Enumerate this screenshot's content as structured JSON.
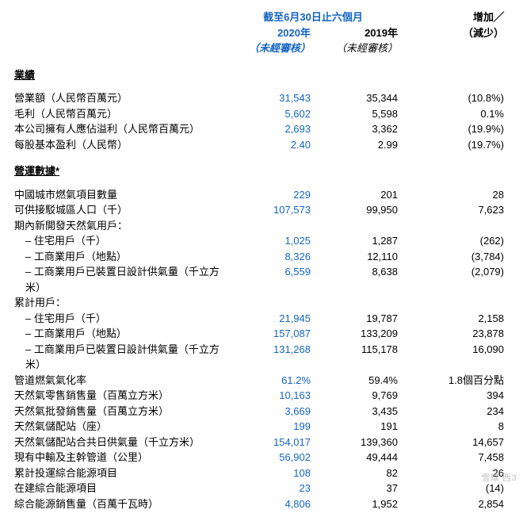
{
  "colors": {
    "blue": "#1565c0",
    "text": "#000000",
    "watermark": "#bfbfbf",
    "background": "#ffffff"
  },
  "header": {
    "period_span_line": "截至6月30日止六個月",
    "col_2020": "2020年",
    "col_2019": "2019年",
    "col_change_line1": "增加╱",
    "col_change_line2": "（減少）",
    "unaudited_2020": "（未經審核）",
    "unaudited_2019": "（未經審核）"
  },
  "sections": {
    "results": "業績",
    "operating": "營運數據*"
  },
  "results_rows": [
    {
      "label": "營業額（人民幣百萬元）",
      "y2020": "31,543",
      "y2019": "35,344",
      "chg": "(10.8%)"
    },
    {
      "label": "毛利（人民幣百萬元）",
      "y2020": "5,602",
      "y2019": "5,598",
      "chg": "0.1%"
    },
    {
      "label": "本公司擁有人應佔溢利（人民幣百萬元）",
      "y2020": "2,693",
      "y2019": "3,362",
      "chg": "(19.9%)"
    },
    {
      "label": "每股基本盈利（人民幣）",
      "y2020": "2.40",
      "y2019": "2.99",
      "chg": "(19.7%)"
    }
  ],
  "op_rows": [
    {
      "label": "中國城市燃氣項目數量",
      "y2020": "229",
      "y2019": "201",
      "chg": "28"
    },
    {
      "label": "可供接駁城區人口（千）",
      "y2020": "107,573",
      "y2019": "99,950",
      "chg": "7,623"
    },
    {
      "label": "期內新開發天然氣用戶：",
      "header": true
    },
    {
      "label": "– 住宅用戶（千）",
      "indent": true,
      "y2020": "1,025",
      "y2019": "1,287",
      "chg": "(262)"
    },
    {
      "label": "– 工商業用戶（地點）",
      "indent": true,
      "y2020": "8,326",
      "y2019": "12,110",
      "chg": "(3,784)"
    },
    {
      "label": "– 工商業用戶已裝置日設計供氣量（千立方米）",
      "indent": true,
      "y2020": "6,559",
      "y2019": "8,638",
      "chg": "(2,079)"
    },
    {
      "label": "累計用戶：",
      "header": true
    },
    {
      "label": "– 住宅用戶（千）",
      "indent": true,
      "y2020": "21,945",
      "y2019": "19,787",
      "chg": "2,158"
    },
    {
      "label": "– 工商業用戶（地點）",
      "indent": true,
      "y2020": "157,087",
      "y2019": "133,209",
      "chg": "23,878"
    },
    {
      "label": "– 工商業用戶已裝置日設計供氣量（千立方米）",
      "indent": true,
      "y2020": "131,268",
      "y2019": "115,178",
      "chg": "16,090"
    },
    {
      "label": "管道燃氣氣化率",
      "y2020": "61.2%",
      "y2019": "59.4%",
      "chg": "1.8個百分點"
    },
    {
      "label": "天然氣零售銷售量（百萬立方米）",
      "y2020": "10,163",
      "y2019": "9,769",
      "chg": "394"
    },
    {
      "label": "天然氣批發銷售量（百萬立方米）",
      "y2020": "3,669",
      "y2019": "3,435",
      "chg": "234"
    },
    {
      "label": "天然氣儲配站（座）",
      "y2020": "199",
      "y2019": "191",
      "chg": "8"
    },
    {
      "label": "天然氣儲配站合共日供氣量（千立方米）",
      "y2020": "154,017",
      "y2019": "139,360",
      "chg": "14,657"
    },
    {
      "label": "現有中輸及主幹管道（公里）",
      "y2020": "56,902",
      "y2019": "49,444",
      "chg": "7,458"
    },
    {
      "label": "累計投運綜合能源項目",
      "y2020": "108",
      "y2019": "82",
      "chg": "26"
    },
    {
      "label": "在建綜合能源項目",
      "y2020": "23",
      "y2019": "37",
      "chg": "(14)"
    },
    {
      "label": "綜合能源銷售量（百萬千瓦時）",
      "y2020": "4,806",
      "y2019": "1,952",
      "chg": "2,854"
    }
  ],
  "watermark": "雪球  西3"
}
